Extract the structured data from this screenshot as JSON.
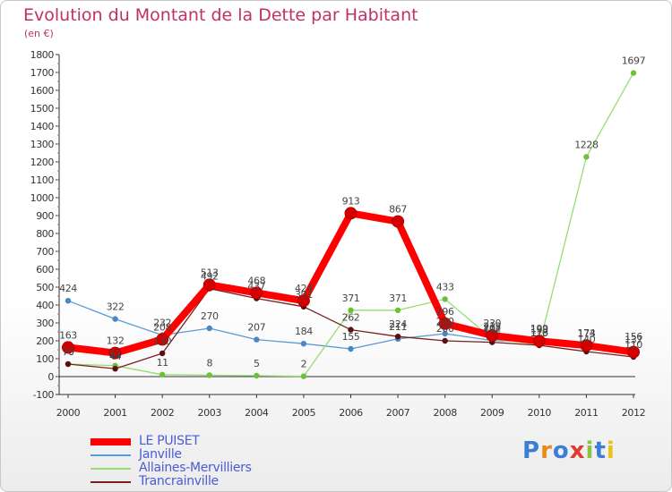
{
  "chart_data": {
    "type": "line",
    "title": "Evolution du Montant de la Dette par Habitant",
    "subtitle": "(en €)",
    "x": [
      "2000",
      "2001",
      "2002",
      "2003",
      "2004",
      "2005",
      "2006",
      "2007",
      "2008",
      "2009",
      "2010",
      "2011",
      "2012"
    ],
    "ylim": [
      -100,
      1800
    ],
    "yticks": [
      -100,
      0,
      100,
      200,
      300,
      400,
      500,
      600,
      700,
      800,
      900,
      1000,
      1100,
      1200,
      1300,
      1400,
      1500,
      1600,
      1700,
      1800
    ],
    "grid": false,
    "legend_position": "bottom-left",
    "series": [
      {
        "name": "LE PUISET",
        "color": "#ff0000",
        "values": [
          163,
          132,
          208,
          513,
          468,
          424,
          913,
          867,
          296,
          230,
          199,
          174,
          137
        ]
      },
      {
        "name": "Janville",
        "color": "#5b9bd5",
        "values": [
          424,
          322,
          232,
          270,
          207,
          184,
          155,
          211,
          240,
          202,
          193,
          173,
          156
        ]
      },
      {
        "name": "Allaines-Mervilliers",
        "color": "#8fd36c",
        "values": [
          70,
          61,
          11,
          8,
          5,
          2,
          371,
          371,
          433,
          212,
          178,
          1228,
          1697
        ]
      },
      {
        "name": "Trancrainville",
        "color": "#7a1f1f",
        "values": [
          70,
          44,
          130,
          492,
          437,
          391,
          262,
          224,
          200,
          192,
          175,
          140,
          110
        ]
      }
    ]
  },
  "logo": {
    "letters": [
      "P",
      "r",
      "o",
      "x",
      "i",
      "t",
      "i"
    ],
    "colors": [
      "#3b7fd4",
      "#e8891a",
      "#3b7fd4",
      "#e03b2e",
      "#8ac43f",
      "#3b7fd4",
      "#e8c11a"
    ]
  }
}
